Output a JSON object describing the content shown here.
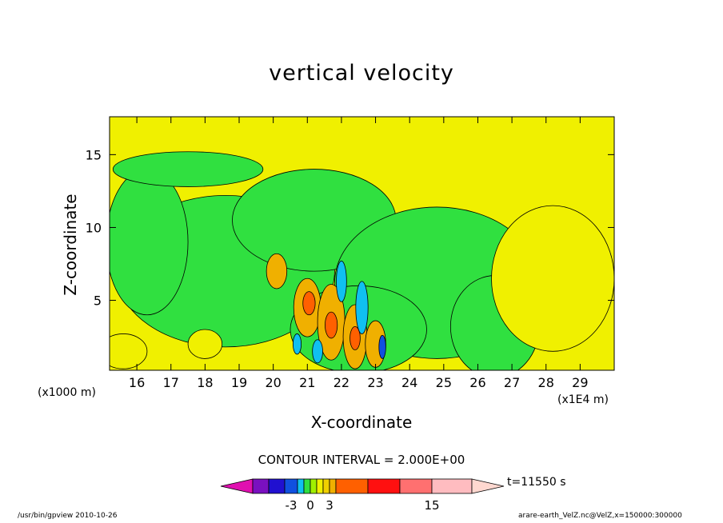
{
  "chart_data": {
    "type": "heatmap",
    "title": "vertical velocity",
    "xlabel": "X-coordinate",
    "ylabel": "Z-coordinate",
    "x_unit_left": "(x1000 m)",
    "x_unit_right": "(x1E4 m)",
    "xlim": [
      15.2,
      30.0
    ],
    "ylim": [
      0.2,
      17.6
    ],
    "xticks": [
      "16",
      "17",
      "18",
      "19",
      "20",
      "21",
      "22",
      "23",
      "24",
      "25",
      "26",
      "27",
      "28",
      "29"
    ],
    "yticks": [
      "5",
      "10",
      "15"
    ],
    "contour_interval_label": "CONTOUR INTERVAL = 2.000E+00",
    "time_label": "t=11550 s",
    "colorbar": {
      "colors": [
        "#e010b0",
        "#7a10c0",
        "#2010d0",
        "#1050e0",
        "#10c0f0",
        "#30e040",
        "#a0f000",
        "#f0f000",
        "#f0d000",
        "#f0b000",
        "#ff6000",
        "#ff1010",
        "#ff7070",
        "#ffbcc0",
        "#ffd8d0"
      ],
      "labels": [
        {
          "text": "-3",
          "value": -3
        },
        {
          "text": "0",
          "value": 0
        },
        {
          "text": "3",
          "value": 3
        },
        {
          "text": "15",
          "value": 15
        }
      ]
    },
    "field_colors": {
      "negative_strong": "#10c0f0",
      "negative_weak": "#30e040",
      "near_zero": "#f0f000",
      "positive": "#f0b000",
      "positive_strong": "#ff6000",
      "strong_downdraft": "#1050e0"
    }
  },
  "footer": {
    "left": "/usr/bin/gpview   2010-10-26",
    "right": "arare-earth_VelZ.nc@VelZ,x=150000:300000"
  }
}
